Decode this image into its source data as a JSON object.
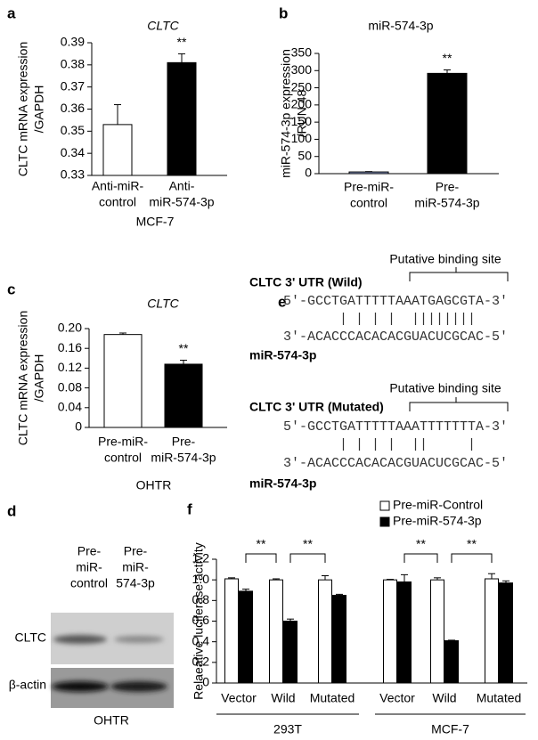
{
  "chart_data": [
    {
      "type": "bar",
      "panel": "a",
      "title": "CLTC",
      "ylabel": [
        "CLTC mRNA expression",
        "/GAPDH"
      ],
      "categories": [
        [
          "Anti-miR-",
          "control"
        ],
        [
          "Anti-",
          "miR-574-3p"
        ]
      ],
      "xlabel": "MCF-7",
      "values": [
        0.353,
        0.381
      ],
      "errors": [
        0.009,
        0.004
      ],
      "colors": [
        "#ffffff",
        "#000000"
      ],
      "annotation": "**",
      "ylim": [
        0.33,
        0.39
      ],
      "yticks": [
        0.33,
        0.34,
        0.35,
        0.36,
        0.37,
        0.38,
        0.39
      ]
    },
    {
      "type": "bar",
      "panel": "b",
      "title": "miR-574-3p",
      "ylabel": [
        "miR-574-3p expression",
        "/RUN 48"
      ],
      "categories": [
        [
          "Pre-miR-",
          "control"
        ],
        [
          "Pre-",
          "miR-574-3p"
        ]
      ],
      "values": [
        5,
        292
      ],
      "errors": [
        1,
        10
      ],
      "colors": [
        "#8fa0d0",
        "#000000"
      ],
      "annotation": "**",
      "ylim": [
        0,
        350
      ],
      "yticks": [
        0,
        50,
        100,
        150,
        200,
        250,
        300,
        350
      ]
    },
    {
      "type": "bar",
      "panel": "c",
      "title": "CLTC",
      "ylabel": [
        "CLTC mRNA expression",
        "/GAPDH"
      ],
      "categories": [
        [
          "Pre-miR-",
          "control"
        ],
        [
          "Pre-",
          "miR-574-3p"
        ]
      ],
      "xlabel": "OHTR",
      "values": [
        0.188,
        0.128
      ],
      "errors": [
        0.003,
        0.008
      ],
      "colors": [
        "#ffffff",
        "#000000"
      ],
      "annotation": "**",
      "ylim": [
        0,
        0.2
      ],
      "yticks": [
        0,
        0.04,
        0.08,
        0.12,
        0.16,
        {
          "value": 0.2,
          "label": "0.20"
        }
      ]
    },
    {
      "type": "grouped-bar",
      "panel": "f",
      "ylabel": [
        "Relaeative luciferase activity"
      ],
      "categories": [
        "Vector",
        "Wild",
        "Mutated",
        "Vector",
        "Wild",
        "Mutated"
      ],
      "groups": [
        "293T",
        "MCF-7"
      ],
      "series": [
        {
          "name": "Pre-miR-Control",
          "color": "#ffffff",
          "values": [
            1.01,
            1.0,
            1.0,
            1.0,
            1.0,
            1.01
          ],
          "errors": [
            0.01,
            0.01,
            0.04,
            0.005,
            0.02,
            0.05
          ]
        },
        {
          "name": "Pre-miR-574-3p",
          "color": "#000000",
          "values": [
            0.89,
            0.6,
            0.85,
            0.98,
            0.41,
            0.97
          ],
          "errors": [
            0.02,
            0.02,
            0.01,
            0.07,
            0.005,
            0.02
          ]
        }
      ],
      "brackets": [
        "**",
        "**",
        "**",
        "**"
      ],
      "legend": "top-right",
      "ylim": [
        0,
        1.2
      ],
      "yticks": [
        0,
        0.2,
        0.4,
        0.6,
        0.8,
        {
          "value": 1,
          "label": "1.0"
        },
        1.2
      ]
    }
  ],
  "blot": {
    "panel": "d",
    "lanes": [
      [
        "Pre-",
        "miR-",
        "control"
      ],
      [
        "Pre-",
        "miR-",
        "574-3p"
      ]
    ],
    "rows": [
      "CLTC",
      "β-actin"
    ],
    "cell_line": "OHTR"
  },
  "sequence": {
    "panel": "e",
    "blocks": [
      {
        "label": "CLTC 3' UTR (Wild)",
        "site": "Putative binding site",
        "target": "5'-GCCTGATTTTTAAATGAGCGTA-3'",
        "pairs": "       | | | |  ||||||||",
        "mirna_seq": "3'-ACACCCACACACGUACUCGCAC-5'",
        "mirna": "miR-574-3p"
      },
      {
        "label": "CLTC 3' UTR (Mutated)",
        "site": "Putative binding site",
        "target": "5'-GCCTGATTTTTAAATTTTTTTA-3'",
        "pairs": "       | | | |  ||     |",
        "mirna_seq": "3'-ACACCCACACACGUACUCGCAC-5'",
        "mirna": "miR-574-3p"
      }
    ]
  }
}
